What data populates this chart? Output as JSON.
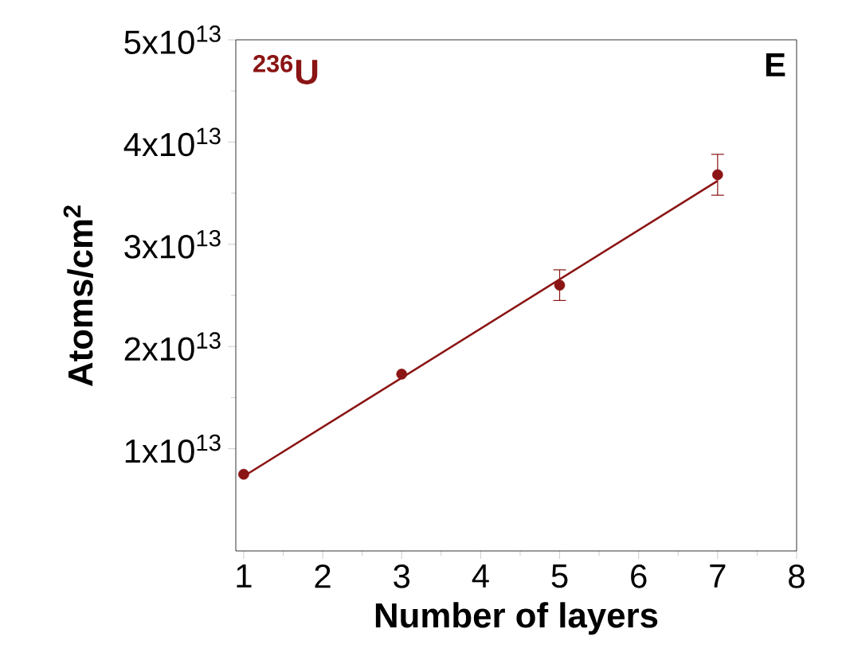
{
  "chart_data": {
    "type": "scatter",
    "xlabel": "Number of layers",
    "ylabel": "Atoms/cm$^{2}$",
    "annotations": [
      "$^{236}$U",
      "E"
    ],
    "series": [
      {
        "color": "#8b1414",
        "marker": "circle",
        "x": [
          1,
          3,
          5,
          7
        ],
        "values": [
          7500000000000.0,
          17300000000000.0,
          26000000000000.0,
          36800000000000.0
        ],
        "errors": [
          null,
          null,
          1500000000000.0,
          2000000000000.0
        ]
      },
      {
        "type": "line",
        "marker": "none",
        "color": "#8b1414",
        "x": [
          1,
          7
        ],
        "values": [
          7300000000000.0,
          36200000000000.0
        ]
      }
    ],
    "xlim": [
      0.9,
      8
    ],
    "ylim": [
      0,
      50000000000000.0
    ],
    "xticks": [
      1,
      2,
      3,
      4,
      5,
      6,
      7,
      8
    ],
    "yticks": [
      {
        "value": 10000000000000.0,
        "label": "1x10$^{13}$"
      },
      {
        "value": 20000000000000.0,
        "label": "2x10$^{13}$"
      },
      {
        "value": 30000000000000.0,
        "label": "3x10$^{13}$"
      },
      {
        "value": 40000000000000.0,
        "label": "4x10$^{13}$"
      },
      {
        "value": 50000000000000.0,
        "label": "5x10$^{13}$"
      }
    ],
    "grid": false
  }
}
